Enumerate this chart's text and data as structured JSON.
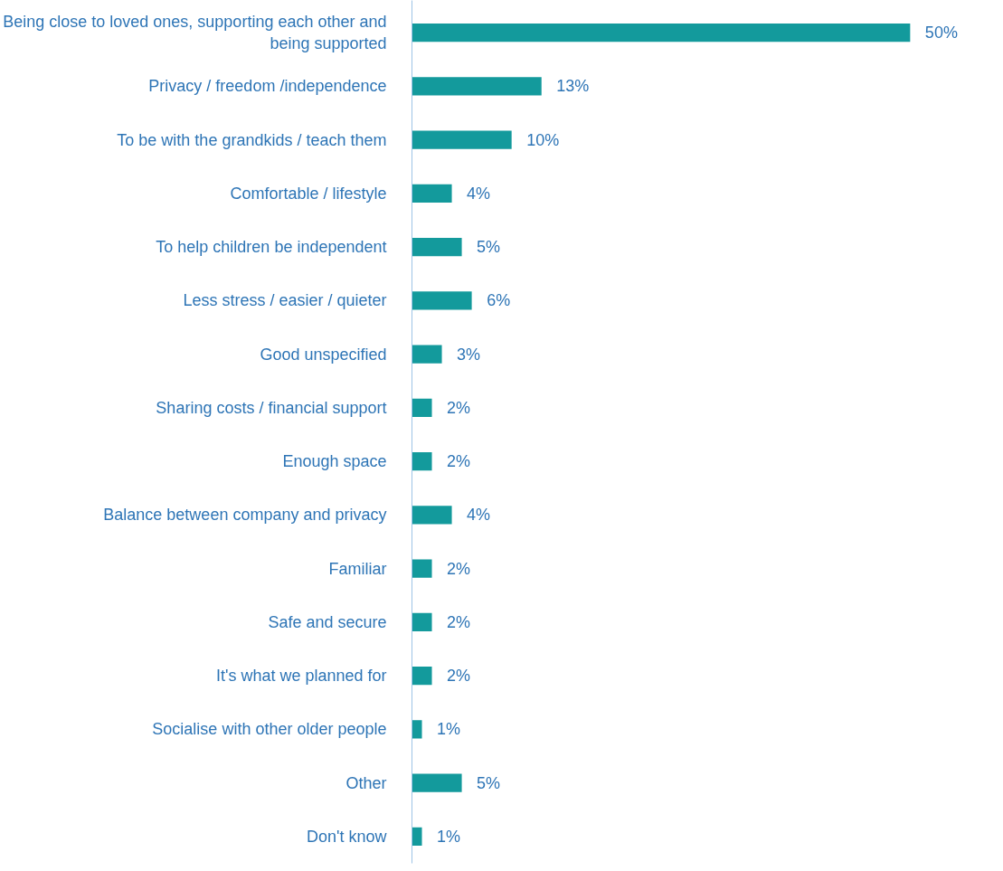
{
  "chart_data": {
    "type": "bar",
    "orientation": "horizontal",
    "categories": [
      "Being close to loved ones, supporting each other and being supported",
      "Privacy / freedom /independence",
      "To be with the grandkids / teach them",
      "Comfortable / lifestyle",
      "To help children be independent",
      "Less stress / easier / quieter",
      "Good unspecified",
      "Sharing costs / financial support",
      "Enough space",
      "Balance between company and privacy",
      "Familiar",
      "Safe and secure",
      "It's what we planned for",
      "Socialise with other older people",
      "Other",
      "Don't know"
    ],
    "values": [
      50,
      13,
      10,
      4,
      5,
      6,
      3,
      2,
      2,
      4,
      2,
      2,
      2,
      1,
      5,
      1
    ],
    "value_labels": [
      "50%",
      "13%",
      "10%",
      "4%",
      "5%",
      "6%",
      "3%",
      "2%",
      "2%",
      "4%",
      "2%",
      "2%",
      "2%",
      "1%",
      "5%",
      "1%"
    ],
    "color": "#139a9c",
    "grid": false
  }
}
